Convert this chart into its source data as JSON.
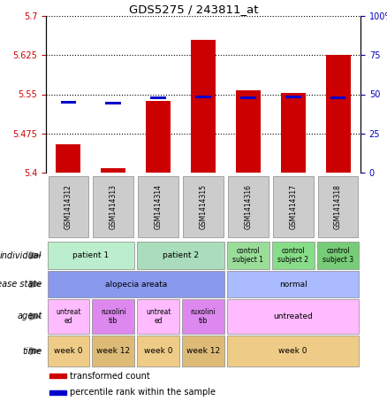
{
  "title": "GDS5275 / 243811_at",
  "samples": [
    "GSM1414312",
    "GSM1414313",
    "GSM1414314",
    "GSM1414315",
    "GSM1414316",
    "GSM1414317",
    "GSM1414318"
  ],
  "red_values": [
    5.455,
    5.408,
    5.538,
    5.655,
    5.558,
    5.553,
    5.625
  ],
  "blue_values": [
    5.535,
    5.533,
    5.543,
    5.545,
    5.543,
    5.545,
    5.543
  ],
  "ymin": 5.4,
  "ymax": 5.7,
  "yticks": [
    5.4,
    5.475,
    5.55,
    5.625,
    5.7
  ],
  "ytick_labels": [
    "5.4",
    "5.475",
    "5.55",
    "5.625",
    "5.7"
  ],
  "y2ticks": [
    0,
    25,
    50,
    75,
    100
  ],
  "y2tick_labels": [
    "0",
    "25",
    "50",
    "75",
    "100%"
  ],
  "bar_color": "#cc0000",
  "blue_color": "#0000cc",
  "label_color_left": "#cc0000",
  "label_color_right": "#0000bb",
  "annotation_rows": [
    {
      "label": "individual",
      "cells": [
        {
          "text": "patient 1",
          "span": 2,
          "color": "#bbeecc"
        },
        {
          "text": "patient 2",
          "span": 2,
          "color": "#aaddbb"
        },
        {
          "text": "control\nsubject 1",
          "span": 1,
          "color": "#99dd99"
        },
        {
          "text": "control\nsubject 2",
          "span": 1,
          "color": "#88dd88"
        },
        {
          "text": "control\nsubject 3",
          "span": 1,
          "color": "#77cc77"
        }
      ]
    },
    {
      "label": "disease state",
      "cells": [
        {
          "text": "alopecia areata",
          "span": 4,
          "color": "#8899ee"
        },
        {
          "text": "normal",
          "span": 3,
          "color": "#aabbff"
        }
      ]
    },
    {
      "label": "agent",
      "cells": [
        {
          "text": "untreat\ned",
          "span": 1,
          "color": "#ffbbff"
        },
        {
          "text": "ruxolini\ntib",
          "span": 1,
          "color": "#dd88ee"
        },
        {
          "text": "untreat\ned",
          "span": 1,
          "color": "#ffbbff"
        },
        {
          "text": "ruxolini\ntib",
          "span": 1,
          "color": "#dd88ee"
        },
        {
          "text": "untreated",
          "span": 3,
          "color": "#ffbbff"
        }
      ]
    },
    {
      "label": "time",
      "cells": [
        {
          "text": "week 0",
          "span": 1,
          "color": "#eecc88"
        },
        {
          "text": "week 12",
          "span": 1,
          "color": "#ddbb77"
        },
        {
          "text": "week 0",
          "span": 1,
          "color": "#eecc88"
        },
        {
          "text": "week 12",
          "span": 1,
          "color": "#ddbb77"
        },
        {
          "text": "week 0",
          "span": 3,
          "color": "#eecc88"
        }
      ]
    }
  ],
  "legend": [
    {
      "color": "#cc0000",
      "label": "transformed count"
    },
    {
      "color": "#0000cc",
      "label": "percentile rank within the sample"
    }
  ]
}
